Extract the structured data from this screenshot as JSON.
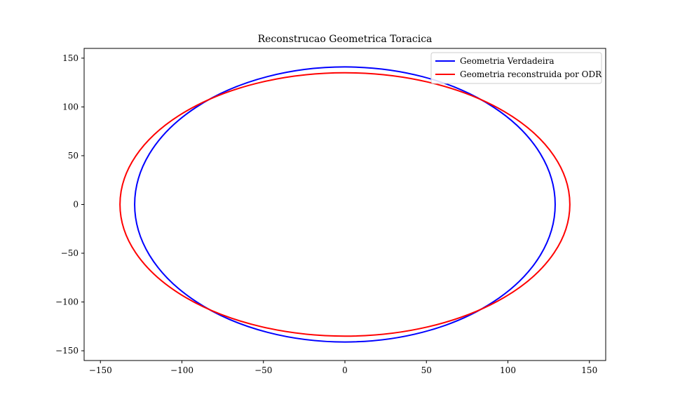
{
  "chart_data": {
    "type": "line",
    "title": "Reconstrucao Geometrica Toracica",
    "xlabel": "",
    "ylabel": "",
    "xlim": [
      -160,
      160
    ],
    "ylim": [
      -160,
      160
    ],
    "xticks": [
      -150,
      -100,
      -50,
      0,
      50,
      100,
      150
    ],
    "yticks": [
      -150,
      -100,
      -50,
      0,
      50,
      100,
      150
    ],
    "xtick_labels": [
      "−150",
      "−100",
      "−50",
      "0",
      "50",
      "100",
      "150"
    ],
    "ytick_labels": [
      "−150",
      "−100",
      "−50",
      "0",
      "50",
      "100",
      "150"
    ],
    "grid": false,
    "legend_position": "top-right",
    "series": [
      {
        "name": "Geometria Verdadeira",
        "color": "#0000ff",
        "shape": "ellipse",
        "center": [
          0,
          0
        ],
        "semi_axis_x": 129,
        "semi_axis_y": 141
      },
      {
        "name": "Geometria reconstruida por ODR",
        "color": "#ff0000",
        "shape": "ellipse",
        "center": [
          0,
          0
        ],
        "semi_axis_x": 138,
        "semi_axis_y": 135
      }
    ]
  }
}
